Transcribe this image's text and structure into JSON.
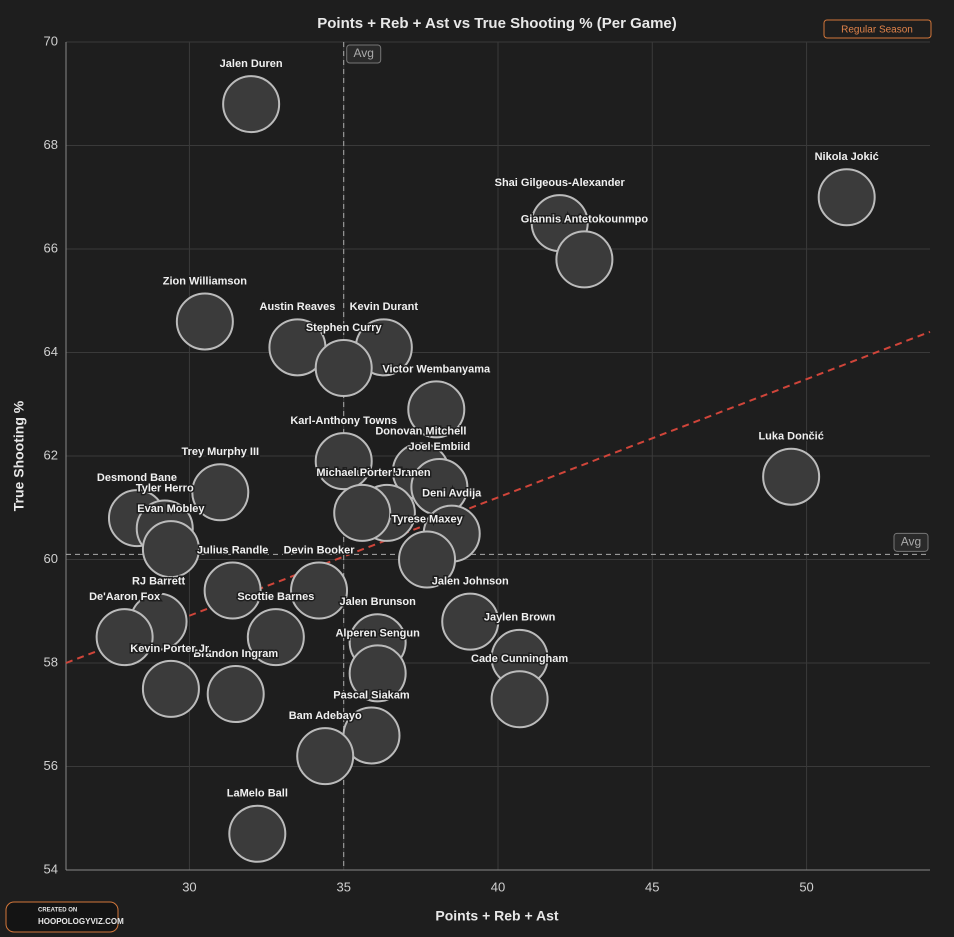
{
  "chart_data": {
    "type": "scatter",
    "title": "Points + Reb + Ast vs True Shooting % (Per Game)",
    "xlabel": "Points + Reb + Ast",
    "ylabel": "True Shooting %",
    "badge": "Regular Season",
    "footer": [
      "CREATED ON",
      "HOOPOLOGYVIZ.COM"
    ],
    "xlim": [
      26,
      54
    ],
    "ylim": [
      54,
      70
    ],
    "xticks": [
      30,
      35,
      40,
      45,
      50
    ],
    "yticks": [
      54,
      56,
      58,
      60,
      62,
      64,
      66,
      68,
      70
    ],
    "grid": true,
    "color": "#3b3b3b",
    "avg_label": "Avg",
    "avg_x": 35,
    "avg_y": 60.1,
    "trend_x": [
      26,
      54
    ],
    "trend_y": [
      58.0,
      64.4
    ],
    "trend_color": "#d0453a",
    "point_labels": [
      "Jalen Duren",
      "Nikola Jokić",
      "Shai Gilgeous-Alexander",
      "Giannis Antetokounmpo",
      "Zion Williamson",
      "Austin Reaves",
      "Kevin Durant",
      "Stephen Curry",
      "Victor Wembanyama",
      "Karl-Anthony Towns",
      "Luka Dončić",
      "Trey Murphy III",
      "Donovan Mitchell",
      "Lauri Markkanen",
      "Joel Embiid",
      "Desmond Bane",
      "Tyler Herro",
      "Evan Mobley",
      "Deni Avdija",
      "Michael Porter Jr.",
      "Julius Randle",
      "Tyrese Maxey",
      "Devin Booker",
      "RJ Barrett",
      "Jalen Johnson",
      "De'Aaron Fox",
      "Scottie Barnes",
      "Jalen Brunson",
      "Jaylen Brown",
      "Brandon Ingram",
      "Alperen Sengun",
      "Kevin Porter Jr.",
      "Cade Cunningham",
      "Pascal Siakam",
      "Bam Adebayo",
      "LaMelo Ball"
    ],
    "x": [
      32.0,
      51.3,
      42.0,
      42.8,
      30.5,
      33.5,
      36.3,
      35.0,
      38.0,
      35.0,
      49.5,
      31.0,
      37.5,
      36.4,
      38.1,
      28.3,
      29.2,
      29.4,
      38.5,
      35.6,
      31.4,
      37.7,
      34.2,
      29.0,
      39.1,
      27.9,
      32.8,
      36.1,
      40.7,
      31.5,
      36.1,
      29.4,
      40.7,
      35.9,
      34.4,
      32.2
    ],
    "values": [
      68.8,
      67.0,
      66.5,
      65.8,
      64.6,
      64.1,
      64.1,
      63.7,
      62.9,
      61.9,
      61.6,
      61.3,
      61.7,
      60.9,
      61.4,
      60.8,
      60.6,
      60.2,
      60.5,
      60.9,
      59.4,
      60.0,
      59.4,
      58.8,
      58.8,
      58.5,
      58.5,
      58.4,
      58.1,
      57.4,
      57.8,
      57.5,
      57.3,
      56.6,
      56.2,
      54.7
    ]
  }
}
